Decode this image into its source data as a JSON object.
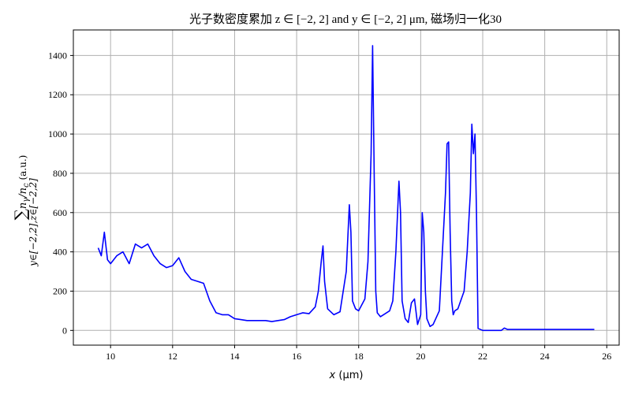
{
  "chart_data": {
    "type": "line",
    "title": "光子数密度累加 z ∈ [−2, 2] and y ∈ [−2, 2] μm, 磁场归一化30",
    "xlabel": "x (μm)",
    "ylabel": "∑ y∈[−2,2],z∈[−2,2] nγ/nc (a.u.)",
    "ylabel_parts": {
      "sum": "∑",
      "sub": "y∈[−2,2],z∈[−2,2]",
      "n": "n",
      "gamma": "γ",
      "slash": "/n",
      "c": "c",
      "unit": " (a.u.)"
    },
    "xlabel_parts": {
      "var": "x",
      "unit": " (μm)"
    },
    "xlim": [
      8.8,
      26.4
    ],
    "ylim": [
      -75,
      1530
    ],
    "xticks": [
      10,
      12,
      14,
      16,
      18,
      20,
      22,
      24,
      26
    ],
    "yticks": [
      0,
      200,
      400,
      600,
      800,
      1000,
      1200,
      1400
    ],
    "grid": true,
    "color": "#0000ff",
    "series": [
      {
        "x": [
          9.6,
          9.7,
          9.8,
          9.9,
          10.0,
          10.2,
          10.4,
          10.6,
          10.8,
          11.0,
          11.2,
          11.4,
          11.6,
          11.8,
          12.0,
          12.2,
          12.4,
          12.6,
          12.8,
          13.0,
          13.2,
          13.4,
          13.6,
          13.8,
          14.0,
          14.2,
          14.4,
          14.6,
          14.8,
          15.0,
          15.2,
          15.4,
          15.6,
          15.8,
          16.0,
          16.2,
          16.4,
          16.6,
          16.7,
          16.8,
          16.85,
          16.9,
          17.0,
          17.2,
          17.4,
          17.6,
          17.7,
          17.75,
          17.8,
          17.9,
          18.0,
          18.2,
          18.3,
          18.4,
          18.45,
          18.5,
          18.55,
          18.6,
          18.7,
          18.8,
          19.0,
          19.1,
          19.2,
          19.3,
          19.35,
          19.4,
          19.5,
          19.6,
          19.7,
          19.8,
          19.9,
          20.0,
          20.05,
          20.1,
          20.15,
          20.2,
          20.3,
          20.4,
          20.6,
          20.8,
          20.85,
          20.9,
          20.95,
          21.0,
          21.05,
          21.1,
          21.2,
          21.4,
          21.5,
          21.6,
          21.65,
          21.7,
          21.75,
          21.8,
          21.85,
          22.0,
          22.2,
          22.4,
          22.6,
          22.7,
          22.8,
          23.0,
          24.0,
          25.0,
          25.6
        ],
        "y": [
          420,
          380,
          500,
          360,
          340,
          380,
          400,
          340,
          440,
          420,
          440,
          380,
          340,
          320,
          330,
          370,
          300,
          260,
          250,
          240,
          150,
          90,
          80,
          80,
          60,
          55,
          50,
          50,
          50,
          50,
          45,
          50,
          55,
          70,
          80,
          90,
          85,
          120,
          200,
          360,
          430,
          250,
          110,
          80,
          95,
          300,
          640,
          500,
          150,
          110,
          100,
          160,
          350,
          900,
          1450,
          800,
          200,
          90,
          70,
          80,
          100,
          150,
          400,
          760,
          600,
          150,
          60,
          40,
          140,
          160,
          30,
          80,
          600,
          500,
          200,
          60,
          20,
          30,
          100,
          700,
          950,
          960,
          500,
          150,
          80,
          100,
          110,
          200,
          400,
          700,
          1050,
          900,
          1000,
          600,
          10,
          0,
          0,
          0,
          0,
          12,
          5,
          5,
          5,
          5,
          5
        ]
      }
    ]
  }
}
